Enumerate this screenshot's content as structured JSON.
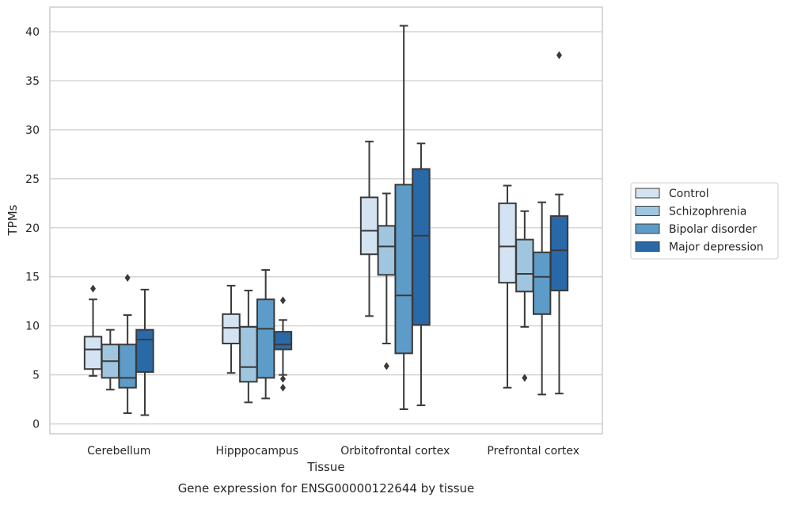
{
  "chart_data": {
    "type": "box",
    "caption": "Gene expression for ENSG00000122644 by tissue",
    "xlabel": "Tissue",
    "ylabel": "TPMs",
    "ylim": [
      -1,
      42.5
    ],
    "yticks": [
      0,
      5,
      10,
      15,
      20,
      25,
      30,
      35,
      40
    ],
    "grid": true,
    "legend_position": "right",
    "categories": [
      "Cerebellum",
      "Hipppocampus",
      "Orbitofrontal cortex",
      "Prefrontal cortex"
    ],
    "series": [
      {
        "name": "Control",
        "color": "#d4e3f2",
        "boxes": [
          {
            "whislo": 4.9,
            "q1": 5.6,
            "med": 7.6,
            "q3": 8.9,
            "whishi": 12.7,
            "fliers": [
              13.8
            ]
          },
          {
            "whislo": 5.2,
            "q1": 8.2,
            "med": 9.8,
            "q3": 11.2,
            "whishi": 14.1,
            "fliers": []
          },
          {
            "whislo": 11.0,
            "q1": 17.3,
            "med": 19.7,
            "q3": 23.1,
            "whishi": 28.8,
            "fliers": []
          },
          {
            "whislo": 3.7,
            "q1": 14.4,
            "med": 18.1,
            "q3": 22.5,
            "whishi": 24.3,
            "fliers": []
          }
        ]
      },
      {
        "name": "Schizophrenia",
        "color": "#9fc6de",
        "boxes": [
          {
            "whislo": 3.5,
            "q1": 4.7,
            "med": 6.4,
            "q3": 8.1,
            "whishi": 9.6,
            "fliers": []
          },
          {
            "whislo": 2.2,
            "q1": 4.3,
            "med": 5.8,
            "q3": 9.9,
            "whishi": 13.6,
            "fliers": []
          },
          {
            "whislo": 8.2,
            "q1": 15.2,
            "med": 18.1,
            "q3": 20.2,
            "whishi": 23.5,
            "fliers": [
              5.9
            ]
          },
          {
            "whislo": 9.9,
            "q1": 13.5,
            "med": 15.3,
            "q3": 18.8,
            "whishi": 21.7,
            "fliers": [
              4.7
            ]
          }
        ]
      },
      {
        "name": "Bipolar disorder",
        "color": "#5d9cc8",
        "boxes": [
          {
            "whislo": 1.1,
            "q1": 3.7,
            "med": 4.7,
            "q3": 8.1,
            "whishi": 11.1,
            "fliers": [
              14.9
            ]
          },
          {
            "whislo": 2.6,
            "q1": 4.7,
            "med": 9.7,
            "q3": 12.7,
            "whishi": 15.7,
            "fliers": []
          },
          {
            "whislo": 1.5,
            "q1": 7.2,
            "med": 13.1,
            "q3": 24.4,
            "whishi": 40.6,
            "fliers": []
          },
          {
            "whislo": 3.0,
            "q1": 11.2,
            "med": 15.0,
            "q3": 17.5,
            "whishi": 22.6,
            "fliers": []
          }
        ]
      },
      {
        "name": "Major depression",
        "color": "#2a69a8",
        "boxes": [
          {
            "whislo": 0.9,
            "q1": 5.3,
            "med": 8.6,
            "q3": 9.6,
            "whishi": 13.7,
            "fliers": []
          },
          {
            "whislo": 5.0,
            "q1": 7.6,
            "med": 8.1,
            "q3": 9.4,
            "whishi": 10.6,
            "fliers": [
              12.6,
              4.6,
              3.7
            ]
          },
          {
            "whislo": 1.9,
            "q1": 10.1,
            "med": 19.2,
            "q3": 26.0,
            "whishi": 28.6,
            "fliers": []
          },
          {
            "whislo": 3.1,
            "q1": 13.6,
            "med": 17.7,
            "q3": 21.2,
            "whishi": 23.4,
            "fliers": [
              37.6
            ]
          }
        ]
      }
    ]
  }
}
